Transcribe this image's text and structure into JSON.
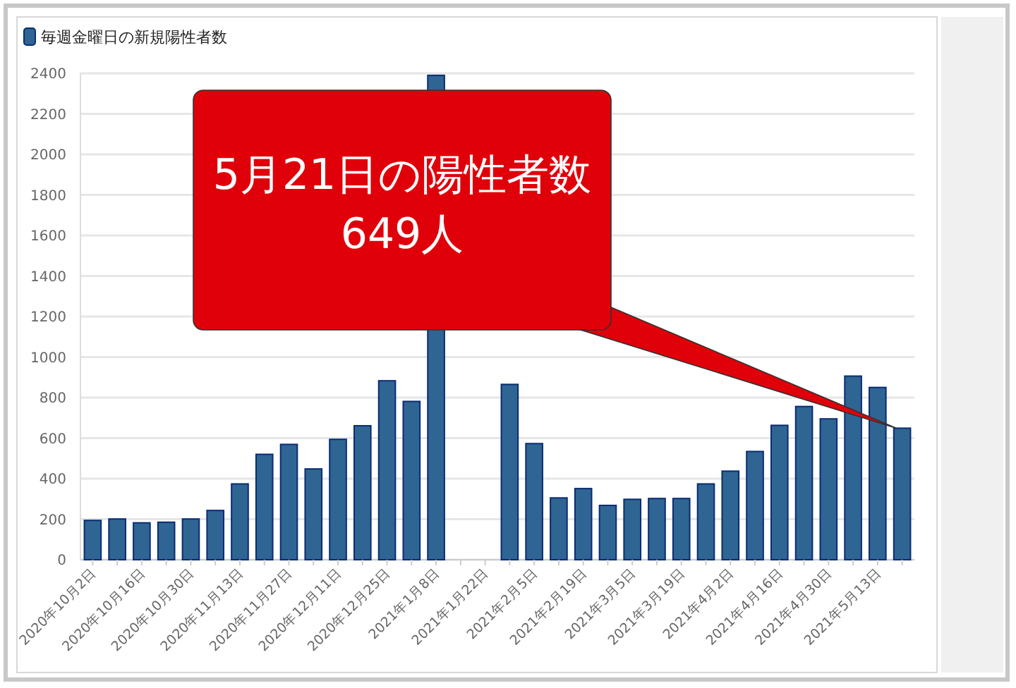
{
  "chart_data": {
    "type": "bar",
    "categories": [
      "2020年10月2日",
      null,
      "2020年10月16日",
      null,
      "2020年10月30日",
      null,
      "2020年11月13日",
      null,
      "2020年11月27日",
      null,
      "2020年12月11日",
      null,
      "2020年12月25日",
      null,
      "2021年1月8日",
      null,
      "2021年1月22日",
      null,
      "2021年2月5日",
      null,
      "2021年2月19日",
      null,
      "2021年3月5日",
      null,
      "2021年3月19日",
      null,
      "2021年4月2日",
      null,
      "2021年4月16日",
      null,
      "2021年4月30日",
      null,
      "2021年5月13日",
      null
    ],
    "series": [
      {
        "name": "毎週金曜日の新規陽性者数",
        "color": "#2f6592",
        "values": [
          194,
          201,
          182,
          185,
          201,
          243,
          374,
          520,
          569,
          448,
          594,
          661,
          883,
          781,
          2390,
          null,
          null,
          865,
          573,
          305,
          351,
          268,
          298,
          302,
          302,
          374,
          437,
          534,
          663,
          756,
          695,
          906,
          850,
          649
        ]
      }
    ],
    "ylim": [
      0,
      2400
    ],
    "yticks": [
      0,
      200,
      400,
      600,
      800,
      1000,
      1200,
      1400,
      1600,
      1800,
      2000,
      2200,
      2400
    ],
    "grid": "y",
    "legend": "top left",
    "annotations": [
      "5月21日の陽性者数\n649人"
    ]
  }
}
